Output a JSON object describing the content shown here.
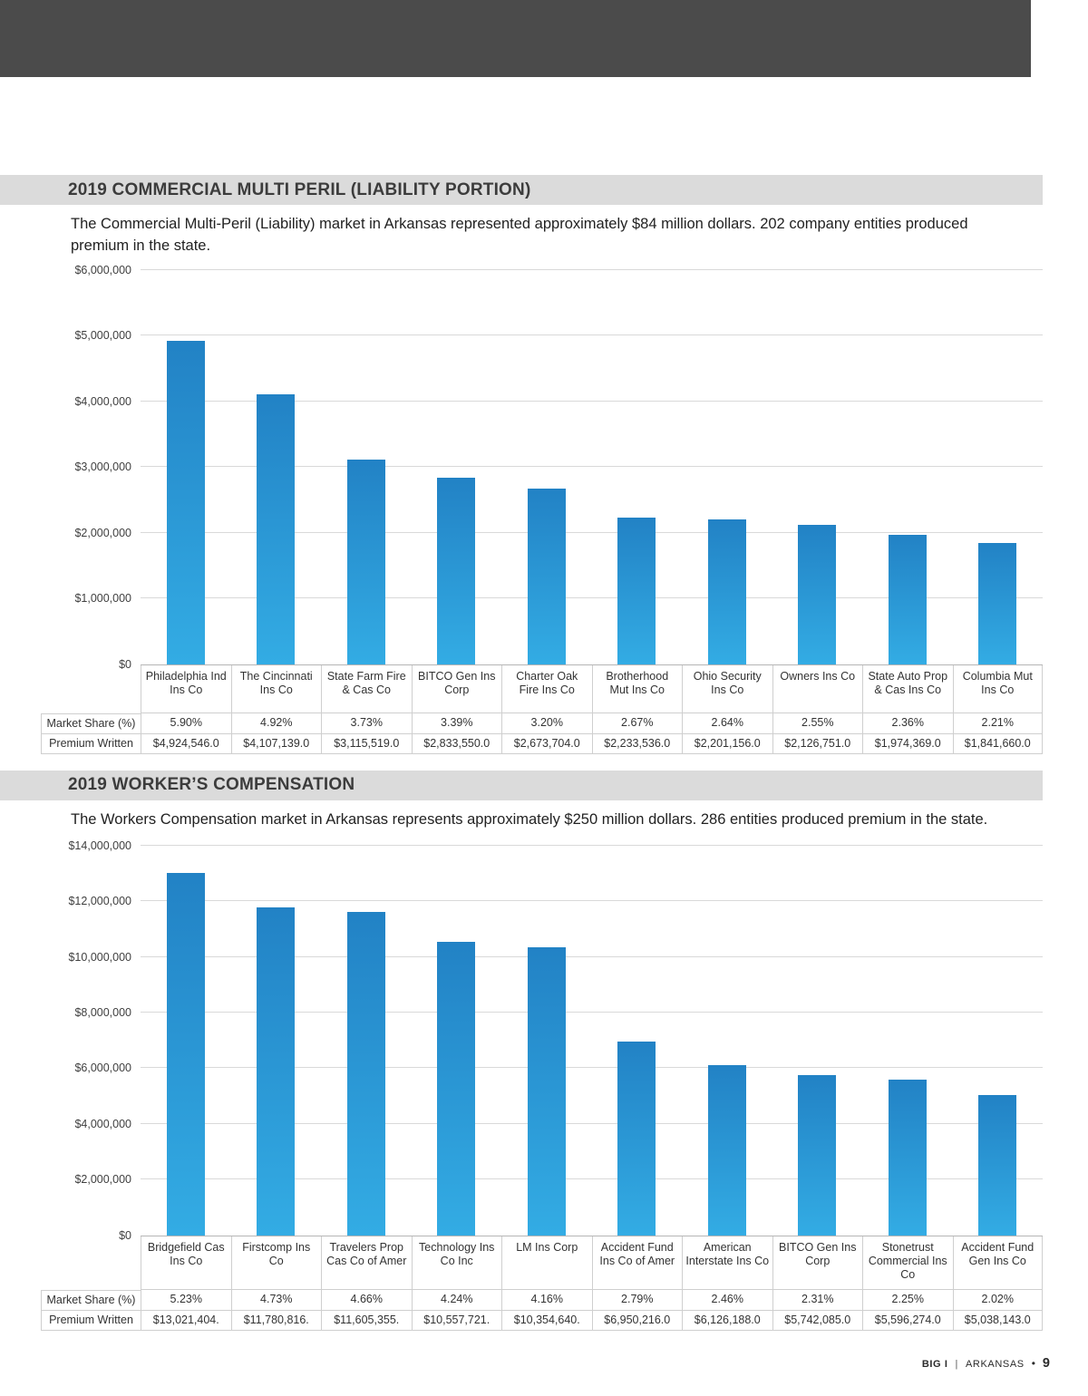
{
  "sections": [
    {
      "title": "2019 COMMERCIAL MULTI PERIL (LIABILITY PORTION)",
      "description": "The Commercial Multi-Peril (Liability) market in Arkansas represented approximately $84 million dollars. 202 company entities produced premium in the state."
    },
    {
      "title": "2019 WORKER’S COMPENSATION",
      "description": "The Workers Compensation market in Arkansas represents approximately $250 million dollars. 286 entities produced premium in the state."
    }
  ],
  "footer": {
    "brand": "BIG I",
    "separator": "|",
    "region": "ARKANSAS",
    "bullet": "•",
    "page_number": "9"
  },
  "chart_data": [
    {
      "type": "bar",
      "title": "2019 COMMERCIAL MULTI PERIL (LIABILITY PORTION)",
      "categories": [
        "Philadelphia Ind Ins Co",
        "The Cincinnati Ins Co",
        "State Farm Fire & Cas Co",
        "BITCO Gen Ins Corp",
        "Charter Oak Fire Ins Co",
        "Brotherhood Mut Ins Co",
        "Ohio Security Ins Co",
        "Owners Ins Co",
        "State Auto Prop & Cas Ins Co",
        "Columbia Mut Ins Co"
      ],
      "values": [
        4924546,
        4107139,
        3115519,
        2833550,
        2673704,
        2233536,
        2201156,
        2126751,
        1974369,
        1841660
      ],
      "row_headers": [
        "Market Share (%)",
        "Premium Written"
      ],
      "market_share": [
        "5.90%",
        "4.92%",
        "3.73%",
        "3.39%",
        "3.20%",
        "2.67%",
        "2.64%",
        "2.55%",
        "2.36%",
        "2.21%"
      ],
      "premium_written": [
        "$4,924,546.0",
        "$4,107,139.0",
        "$3,115,519.0",
        "$2,833,550.0",
        "$2,673,704.0",
        "$2,233,536.0",
        "$2,201,156.0",
        "$2,126,751.0",
        "$1,974,369.0",
        "$1,841,660.0"
      ],
      "xlabel": "",
      "ylabel": "",
      "ylim": [
        0,
        6000000
      ],
      "ytick_step": 1000000,
      "ytick_labels": [
        "$0",
        "$1,000,000",
        "$2,000,000",
        "$3,000,000",
        "$4,000,000",
        "$5,000,000",
        "$6,000,000"
      ],
      "grid": true,
      "legend_position": "none",
      "bar_color_top": "#2282c5",
      "bar_color_bottom": "#33ace4"
    },
    {
      "type": "bar",
      "title": "2019 WORKER’S COMPENSATION",
      "categories": [
        "Bridgefield Cas Ins Co",
        "Firstcomp Ins Co",
        "Travelers Prop Cas Co of Amer",
        "Technology Ins Co Inc",
        "LM Ins Corp",
        "Accident Fund Ins Co of Amer",
        "American Interstate Ins Co",
        "BITCO Gen Ins Corp",
        "Stonetrust Commercial Ins Co",
        "Accident Fund Gen Ins Co"
      ],
      "values": [
        13021404,
        11780816,
        11605355,
        10557721,
        10354640,
        6950216,
        6126188,
        5742085,
        5596274,
        5038143
      ],
      "row_headers": [
        "Market Share (%)",
        "Premium Written"
      ],
      "market_share": [
        "5.23%",
        "4.73%",
        "4.66%",
        "4.24%",
        "4.16%",
        "2.79%",
        "2.46%",
        "2.31%",
        "2.25%",
        "2.02%"
      ],
      "premium_written": [
        "$13,021,404.",
        "$11,780,816.",
        "$11,605,355.",
        "$10,557,721.",
        "$10,354,640.",
        "$6,950,216.0",
        "$6,126,188.0",
        "$5,742,085.0",
        "$5,596,274.0",
        "$5,038,143.0"
      ],
      "xlabel": "",
      "ylabel": "",
      "ylim": [
        0,
        14000000
      ],
      "ytick_step": 2000000,
      "ytick_labels": [
        "$0",
        "$2,000,000",
        "$4,000,000",
        "$6,000,000",
        "$8,000,000",
        "$10,000,000",
        "$12,000,000",
        "$14,000,000"
      ],
      "grid": true,
      "legend_position": "none",
      "bar_color_top": "#2282c5",
      "bar_color_bottom": "#33ace4"
    }
  ]
}
